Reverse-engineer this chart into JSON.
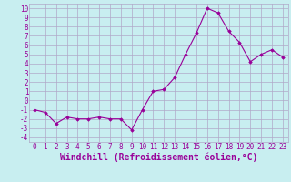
{
  "x": [
    0,
    1,
    2,
    3,
    4,
    5,
    6,
    7,
    8,
    9,
    10,
    11,
    12,
    13,
    14,
    15,
    16,
    17,
    18,
    19,
    20,
    21,
    22,
    23
  ],
  "y": [
    -1,
    -1.3,
    -2.5,
    -1.8,
    -2,
    -2,
    -1.8,
    -2,
    -2,
    -3.2,
    -1,
    1,
    1.2,
    2.5,
    5,
    7.3,
    10,
    9.5,
    7.5,
    6.3,
    4.2,
    5,
    5.5,
    4.7
  ],
  "line_color": "#990099",
  "marker_color": "#990099",
  "bg_color": "#c8eef0",
  "grid_color": "#b0a8c8",
  "xlabel": "Windchill (Refroidissement éolien,°C)",
  "xlim": [
    -0.5,
    23.5
  ],
  "ylim": [
    -4.5,
    10.5
  ],
  "yticks": [
    -4,
    -3,
    -2,
    -1,
    0,
    1,
    2,
    3,
    4,
    5,
    6,
    7,
    8,
    9,
    10
  ],
  "xticks": [
    0,
    1,
    2,
    3,
    4,
    5,
    6,
    7,
    8,
    9,
    10,
    11,
    12,
    13,
    14,
    15,
    16,
    17,
    18,
    19,
    20,
    21,
    22,
    23
  ],
  "xlabel_color": "#990099",
  "tick_color": "#990099",
  "font_size": 5.5,
  "xlabel_font_size": 7.0
}
